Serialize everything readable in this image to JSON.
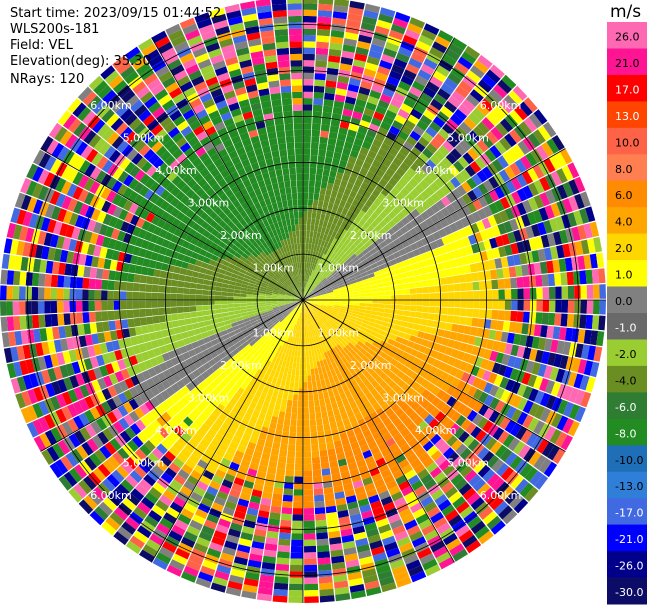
{
  "header": {
    "start_time": "Start time: 2023/09/15 01:44:52",
    "instrument": "WLS200s-181",
    "field": "Field: VEL",
    "elevation": "Elevation(deg): 35.30",
    "nrays": "NRays: 120"
  },
  "chart_data": {
    "type": "heatmap",
    "projection": "polar PPI",
    "field": "VEL",
    "n_rays": 120,
    "range_rings_km": [
      1.0,
      2.0,
      3.0,
      4.0,
      5.0,
      6.0
    ],
    "range_ring_labels": [
      "1.00km",
      "2.00km",
      "3.00km",
      "4.00km",
      "5.00km",
      "6.00km"
    ],
    "max_range_km": 6.6,
    "colorbar": {
      "unit": "m/s",
      "tick_labels": [
        "-30.0",
        "-26.0",
        "-21.0",
        "-17.0",
        "-13.0",
        "-10.0",
        "-8.0",
        "-6.0",
        "-4.0",
        "-2.0",
        "-1.0",
        "0.0",
        "1.0",
        "2.0",
        "4.0",
        "6.0",
        "8.0",
        "10.0",
        "13.0",
        "17.0",
        "21.0",
        "26.0"
      ],
      "colors": [
        "#0c0c66",
        "#00008b",
        "#0000ff",
        "#4169e1",
        "#2f7fd8",
        "#1e6fb8",
        "#228b22",
        "#2e7d32",
        "#6b8e23",
        "#9acd32",
        "#696969",
        "#808080",
        "#ffff00",
        "#ffd700",
        "#ffa500",
        "#ff8c00",
        "#ff7f50",
        "#ff6347",
        "#ff4500",
        "#ff0000",
        "#ff1493",
        "#ff69b4"
      ]
    },
    "wind_pattern": {
      "near_zero_color": "#808080",
      "negative_colors": [
        "#9acd32",
        "#6b8e23",
        "#228b22"
      ],
      "positive_colors": [
        "#ffff00",
        "#ffd700",
        "#ffa500",
        "#ff8c00"
      ],
      "noise_colors": [
        "#ff1493",
        "#ff69b4",
        "#ff0000",
        "#00008b",
        "#0000ff",
        "#ffff00",
        "#ffa500",
        "#228b22",
        "#9acd32",
        "#808080",
        "#4169e1",
        "#ff6347",
        "#0c0c66",
        "#6b8e23",
        "#2e7d32"
      ]
    }
  }
}
